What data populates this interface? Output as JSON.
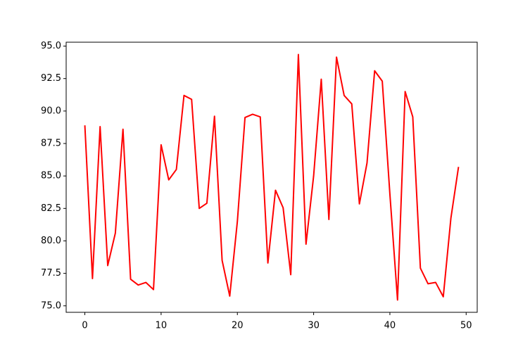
{
  "chart_data": {
    "type": "line",
    "x": [
      0,
      1,
      2,
      3,
      4,
      5,
      6,
      7,
      8,
      9,
      10,
      11,
      12,
      13,
      14,
      15,
      16,
      17,
      18,
      19,
      20,
      21,
      22,
      23,
      24,
      25,
      26,
      27,
      28,
      29,
      30,
      31,
      32,
      33,
      34,
      35,
      36,
      37,
      38,
      39,
      40,
      41,
      42,
      43,
      44,
      45,
      46,
      47,
      48,
      49
    ],
    "series": [
      {
        "color": "#ff0000",
        "values": [
          88.9,
          77.1,
          88.8,
          78.1,
          80.6,
          88.6,
          77.05,
          76.6,
          76.8,
          76.25,
          87.4,
          84.7,
          85.5,
          91.2,
          90.9,
          82.5,
          82.9,
          89.6,
          78.5,
          75.75,
          81.5,
          89.5,
          89.75,
          89.55,
          78.3,
          83.9,
          82.55,
          77.4,
          94.35,
          79.75,
          85.0,
          92.45,
          81.65,
          94.15,
          91.2,
          90.55,
          82.85,
          86.0,
          93.1,
          92.3,
          83.6,
          75.45,
          91.5,
          89.55,
          77.9,
          76.7,
          76.8,
          75.7,
          81.75,
          85.7
        ]
      }
    ],
    "xlim": [
      -2.45,
      51.45
    ],
    "xticks": [
      0,
      10,
      20,
      30,
      40,
      50
    ],
    "ylim": [
      74.5,
      95.3
    ],
    "yticks": [
      {
        "value": 75,
        "label": "75.0"
      },
      77.5,
      {
        "value": 80,
        "label": "80.0"
      },
      82.5,
      {
        "value": 85,
        "label": "85.0"
      },
      87.5,
      {
        "value": 90,
        "label": "90.0"
      },
      92.5,
      {
        "value": 95,
        "label": "95.0"
      }
    ],
    "grid": false
  }
}
